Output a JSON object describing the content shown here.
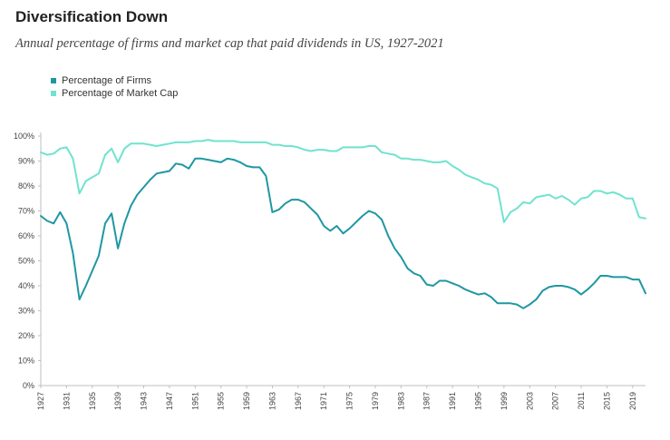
{
  "title": "Diversification Down",
  "subtitle": "Annual percentage of firms and market cap that paid dividends in US, 1927-2021",
  "colors": {
    "firms": "#1f97a3",
    "market_cap": "#6fe3cf",
    "axis": "#bfbfbf"
  },
  "chart_data": {
    "type": "line",
    "legend_position": "top-left",
    "grid": false,
    "ylim": [
      0,
      100
    ],
    "xlim": [
      1927,
      2021
    ],
    "yticks": [
      0,
      10,
      20,
      30,
      40,
      50,
      60,
      70,
      80,
      90,
      100
    ],
    "ytick_labels": [
      "0%",
      "10%",
      "20%",
      "30%",
      "40%",
      "50%",
      "60%",
      "70%",
      "80%",
      "90%",
      "100%"
    ],
    "xticks": [
      1927,
      1931,
      1935,
      1939,
      1943,
      1947,
      1951,
      1955,
      1959,
      1963,
      1967,
      1971,
      1975,
      1979,
      1983,
      1987,
      1991,
      1995,
      1999,
      2003,
      2007,
      2011,
      2015,
      2019
    ],
    "xtick_labels": [
      "1927",
      "1931",
      "1935",
      "1939",
      "1943",
      "1947",
      "1951",
      "1955",
      "1959",
      "1963",
      "1967",
      "1971",
      "1975",
      "1979",
      "1983",
      "1987",
      "1991",
      "1995",
      "1999",
      "2003",
      "2007",
      "2011",
      "2015",
      "2019"
    ],
    "series": [
      {
        "name": "Percentage of Firms",
        "color_key": "firms",
        "points": [
          [
            1927,
            68
          ],
          [
            1928,
            66
          ],
          [
            1929,
            65
          ],
          [
            1930,
            69.5
          ],
          [
            1931,
            65
          ],
          [
            1932,
            53
          ],
          [
            1933,
            34.5
          ],
          [
            1934,
            40
          ],
          [
            1935,
            46
          ],
          [
            1936,
            52
          ],
          [
            1937,
            65
          ],
          [
            1938,
            69
          ],
          [
            1939,
            55
          ],
          [
            1940,
            65
          ],
          [
            1941,
            72
          ],
          [
            1942,
            76.5
          ],
          [
            1943,
            79.5
          ],
          [
            1944,
            82.5
          ],
          [
            1945,
            85
          ],
          [
            1946,
            85.5
          ],
          [
            1947,
            86
          ],
          [
            1948,
            89
          ],
          [
            1949,
            88.5
          ],
          [
            1950,
            87
          ],
          [
            1951,
            91
          ],
          [
            1952,
            91
          ],
          [
            1953,
            90.5
          ],
          [
            1954,
            90
          ],
          [
            1955,
            89.5
          ],
          [
            1956,
            91
          ],
          [
            1957,
            90.5
          ],
          [
            1958,
            89.5
          ],
          [
            1959,
            88
          ],
          [
            1960,
            87.5
          ],
          [
            1961,
            87.5
          ],
          [
            1962,
            84
          ],
          [
            1963,
            69.5
          ],
          [
            1964,
            70.5
          ],
          [
            1965,
            73
          ],
          [
            1966,
            74.5
          ],
          [
            1967,
            74.5
          ],
          [
            1968,
            73.5
          ],
          [
            1969,
            71
          ],
          [
            1970,
            68.5
          ],
          [
            1971,
            64
          ],
          [
            1972,
            62
          ],
          [
            1973,
            64
          ],
          [
            1974,
            61
          ],
          [
            1975,
            63
          ],
          [
            1976,
            65.5
          ],
          [
            1977,
            68
          ],
          [
            1978,
            70
          ],
          [
            1979,
            69
          ],
          [
            1980,
            66.5
          ],
          [
            1981,
            60
          ],
          [
            1982,
            55
          ],
          [
            1983,
            51.5
          ],
          [
            1984,
            47
          ],
          [
            1985,
            45
          ],
          [
            1986,
            44
          ],
          [
            1987,
            40.5
          ],
          [
            1988,
            40
          ],
          [
            1989,
            42
          ],
          [
            1990,
            42
          ],
          [
            1991,
            41
          ],
          [
            1992,
            40
          ],
          [
            1993,
            38.5
          ],
          [
            1994,
            37.5
          ],
          [
            1995,
            36.5
          ],
          [
            1996,
            37
          ],
          [
            1997,
            35.5
          ],
          [
            1998,
            33
          ],
          [
            1999,
            33
          ],
          [
            2000,
            33
          ],
          [
            2001,
            32.5
          ],
          [
            2002,
            31
          ],
          [
            2003,
            32.5
          ],
          [
            2004,
            34.5
          ],
          [
            2005,
            38
          ],
          [
            2006,
            39.5
          ],
          [
            2007,
            40
          ],
          [
            2008,
            40
          ],
          [
            2009,
            39.5
          ],
          [
            2010,
            38.5
          ],
          [
            2011,
            36.5
          ],
          [
            2012,
            38.5
          ],
          [
            2013,
            41
          ],
          [
            2014,
            44
          ],
          [
            2015,
            44
          ],
          [
            2016,
            43.5
          ],
          [
            2017,
            43.5
          ],
          [
            2018,
            43.5
          ],
          [
            2019,
            42.5
          ],
          [
            2020,
            42.5
          ],
          [
            2021,
            37
          ]
        ]
      },
      {
        "name": "Percentage of Market Cap",
        "color_key": "market_cap",
        "points": [
          [
            1927,
            93.5
          ],
          [
            1928,
            92.5
          ],
          [
            1929,
            93
          ],
          [
            1930,
            95
          ],
          [
            1931,
            95.5
          ],
          [
            1932,
            91
          ],
          [
            1933,
            77
          ],
          [
            1934,
            82
          ],
          [
            1935,
            83.5
          ],
          [
            1936,
            85
          ],
          [
            1937,
            92.5
          ],
          [
            1938,
            95
          ],
          [
            1939,
            89.5
          ],
          [
            1940,
            95
          ],
          [
            1941,
            97
          ],
          [
            1942,
            97
          ],
          [
            1943,
            97
          ],
          [
            1944,
            96.5
          ],
          [
            1945,
            96
          ],
          [
            1946,
            96.5
          ],
          [
            1947,
            97
          ],
          [
            1948,
            97.5
          ],
          [
            1949,
            97.5
          ],
          [
            1950,
            97.5
          ],
          [
            1951,
            98
          ],
          [
            1952,
            98
          ],
          [
            1953,
            98.5
          ],
          [
            1954,
            98
          ],
          [
            1955,
            98
          ],
          [
            1956,
            98
          ],
          [
            1957,
            98
          ],
          [
            1958,
            97.5
          ],
          [
            1959,
            97.5
          ],
          [
            1960,
            97.5
          ],
          [
            1961,
            97.5
          ],
          [
            1962,
            97.5
          ],
          [
            1963,
            96.5
          ],
          [
            1964,
            96.5
          ],
          [
            1965,
            96
          ],
          [
            1966,
            96
          ],
          [
            1967,
            95.5
          ],
          [
            1968,
            94.5
          ],
          [
            1969,
            94
          ],
          [
            1970,
            94.5
          ],
          [
            1971,
            94.5
          ],
          [
            1972,
            94
          ],
          [
            1973,
            94
          ],
          [
            1974,
            95.5
          ],
          [
            1975,
            95.5
          ],
          [
            1976,
            95.5
          ],
          [
            1977,
            95.5
          ],
          [
            1978,
            96
          ],
          [
            1979,
            96
          ],
          [
            1980,
            93.5
          ],
          [
            1981,
            93
          ],
          [
            1982,
            92.5
          ],
          [
            1983,
            91
          ],
          [
            1984,
            91
          ],
          [
            1985,
            90.5
          ],
          [
            1986,
            90.5
          ],
          [
            1987,
            90
          ],
          [
            1988,
            89.5
          ],
          [
            1989,
            89.5
          ],
          [
            1990,
            90
          ],
          [
            1991,
            88
          ],
          [
            1992,
            86.5
          ],
          [
            1993,
            84.5
          ],
          [
            1994,
            83.5
          ],
          [
            1995,
            82.5
          ],
          [
            1996,
            81
          ],
          [
            1997,
            80.5
          ],
          [
            1998,
            79
          ],
          [
            1999,
            65.5
          ],
          [
            2000,
            69.5
          ],
          [
            2001,
            71
          ],
          [
            2002,
            73.5
          ],
          [
            2003,
            73
          ],
          [
            2004,
            75.5
          ],
          [
            2005,
            76
          ],
          [
            2006,
            76.5
          ],
          [
            2007,
            75
          ],
          [
            2008,
            76
          ],
          [
            2009,
            74.5
          ],
          [
            2010,
            72.5
          ],
          [
            2011,
            75
          ],
          [
            2012,
            75.5
          ],
          [
            2013,
            78
          ],
          [
            2014,
            78
          ],
          [
            2015,
            77
          ],
          [
            2016,
            77.5
          ],
          [
            2017,
            76.5
          ],
          [
            2018,
            75
          ],
          [
            2019,
            75
          ],
          [
            2020,
            67.5
          ],
          [
            2021,
            67
          ]
        ]
      }
    ]
  }
}
